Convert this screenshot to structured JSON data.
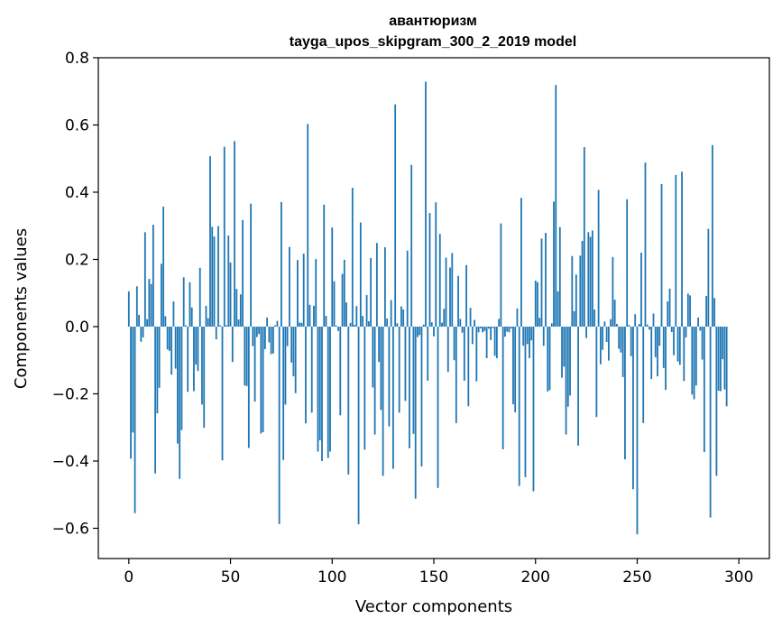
{
  "chart_data": {
    "type": "bar",
    "title": "авантюризм",
    "subtitle": "tayga_upos_skipgram_300_2_2019 model",
    "xlabel": "Vector components",
    "ylabel": "Components values",
    "xlim": [
      -15,
      315
    ],
    "ylim": [
      -0.69,
      0.8
    ],
    "x_ticks": [
      0,
      50,
      100,
      150,
      200,
      250,
      300
    ],
    "x_tick_labels": [
      "0",
      "50",
      "100",
      "150",
      "200",
      "250",
      "300"
    ],
    "y_ticks": [
      -0.6,
      -0.4,
      -0.2,
      0.0,
      0.2,
      0.4,
      0.6,
      0.8
    ],
    "y_tick_labels": [
      "−0.6",
      "−0.4",
      "−0.2",
      "0.0",
      "0.2",
      "0.4",
      "0.6",
      "0.8"
    ],
    "bar_color": "#1f77b4",
    "grid": false,
    "values": [
      0.105,
      -0.393,
      -0.315,
      -0.555,
      0.12,
      0.035,
      -0.045,
      -0.032,
      0.281,
      0.022,
      0.142,
      0.127,
      0.303,
      -0.437,
      -0.258,
      -0.182,
      0.187,
      0.357,
      0.031,
      -0.068,
      -0.072,
      -0.143,
      0.075,
      -0.125,
      -0.348,
      -0.453,
      -0.308,
      0.147,
      0.004,
      -0.194,
      0.132,
      0.057,
      -0.192,
      -0.113,
      -0.132,
      0.175,
      -0.232,
      -0.301,
      0.062,
      0.025,
      0.507,
      0.297,
      0.268,
      -0.038,
      0.299,
      0.004,
      -0.398,
      0.535,
      0.004,
      0.271,
      0.191,
      -0.105,
      0.552,
      0.112,
      0.021,
      0.096,
      0.317,
      -0.175,
      -0.177,
      -0.361,
      0.366,
      -0.058,
      -0.223,
      -0.031,
      -0.022,
      -0.318,
      -0.314,
      -0.067,
      0.027,
      -0.047,
      -0.082,
      -0.08,
      0.004,
      0.017,
      -0.587,
      0.371,
      -0.397,
      -0.232,
      -0.058,
      0.237,
      -0.107,
      -0.148,
      -0.198,
      0.198,
      0.012,
      0.011,
      0.217,
      -0.288,
      0.603,
      0.065,
      -0.256,
      0.062,
      0.201,
      -0.372,
      -0.338,
      -0.4,
      0.363,
      0.032,
      -0.391,
      -0.372,
      0.295,
      0.135,
      0.003,
      -0.013,
      -0.264,
      0.157,
      0.199,
      0.072,
      -0.44,
      0.011,
      0.413,
      0.005,
      0.061,
      -0.588,
      0.31,
      0.032,
      -0.366,
      0.094,
      0.016,
      0.204,
      -0.181,
      -0.321,
      0.249,
      -0.105,
      -0.248,
      -0.444,
      0.236,
      0.024,
      -0.297,
      0.079,
      -0.423,
      0.661,
      0.01,
      -0.256,
      0.06,
      0.051,
      -0.221,
      0.226,
      -0.362,
      0.481,
      -0.319,
      -0.512,
      -0.031,
      -0.025,
      -0.416,
      0.006,
      0.729,
      -0.161,
      0.338,
      0.013,
      -0.029,
      0.37,
      -0.48,
      0.276,
      0.012,
      0.053,
      0.205,
      -0.135,
      0.176,
      0.219,
      -0.1,
      -0.287,
      0.151,
      0.023,
      -0.018,
      -0.161,
      0.183,
      -0.237,
      0.056,
      -0.052,
      0.02,
      -0.163,
      -0.017,
      -0.005,
      -0.017,
      -0.013,
      -0.094,
      -0.006,
      -0.04,
      -0.004,
      -0.087,
      -0.094,
      0.023,
      0.307,
      -0.365,
      -0.03,
      -0.015,
      -0.017,
      -0.006,
      -0.231,
      -0.255,
      0.054,
      -0.474,
      0.383,
      -0.057,
      -0.448,
      -0.052,
      -0.094,
      -0.041,
      -0.49,
      0.137,
      0.132,
      0.026,
      0.262,
      -0.057,
      0.279,
      -0.193,
      -0.189,
      0.01,
      0.372,
      0.719,
      0.105,
      0.296,
      -0.152,
      -0.119,
      -0.321,
      -0.238,
      -0.205,
      0.21,
      0.046,
      0.155,
      -0.354,
      0.211,
      0.255,
      0.534,
      -0.034,
      0.281,
      0.267,
      0.286,
      0.051,
      -0.269,
      0.407,
      -0.112,
      -0.069,
      0.015,
      -0.046,
      -0.101,
      0.022,
      0.207,
      0.08,
      0.008,
      -0.066,
      -0.077,
      -0.15,
      -0.395,
      0.379,
      0.005,
      -0.088,
      -0.484,
      0.037,
      -0.618,
      0.008,
      0.22,
      -0.287,
      0.488,
      0.006,
      -0.009,
      -0.156,
      0.039,
      -0.091,
      -0.148,
      -0.057,
      0.424,
      -0.123,
      -0.188,
      0.075,
      0.113,
      -0.016,
      -0.085,
      0.451,
      -0.104,
      -0.114,
      0.461,
      -0.162,
      -0.032,
      0.098,
      0.093,
      -0.202,
      -0.216,
      -0.175,
      0.027,
      -0.012,
      -0.098,
      -0.373,
      0.091,
      0.291,
      -0.568,
      0.54,
      0.085,
      -0.444,
      -0.191,
      -0.192,
      -0.097,
      -0.187,
      -0.237
    ]
  }
}
